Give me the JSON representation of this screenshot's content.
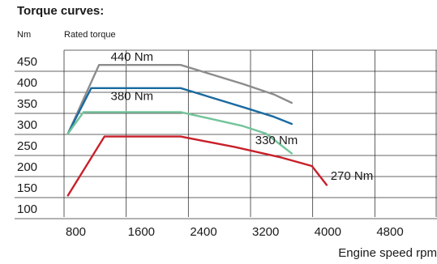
{
  "chart_data": {
    "type": "line",
    "title": "Torque curves:",
    "y_unit": "Nm",
    "ylabel": "Rated torque",
    "xlabel": "Engine speed rpm",
    "xlim": [
      800,
      5600
    ],
    "ylim": [
      100,
      450
    ],
    "x_ticks": [
      800,
      1600,
      2400,
      3200,
      4000,
      4800
    ],
    "y_ticks": [
      450,
      400,
      350,
      300,
      250,
      200,
      150,
      100
    ],
    "grid": true,
    "series": [
      {
        "name": "440 Nm",
        "color": "#8c8c8c",
        "x": [
          850,
          1250,
          2300,
          3100,
          3500,
          3730
        ],
        "y": [
          277,
          440,
          440,
          395,
          370,
          350
        ]
      },
      {
        "name": "380 Nm",
        "color": "#1a6aa0",
        "x": [
          850,
          1150,
          2300,
          3100,
          3500,
          3730
        ],
        "y": [
          277,
          385,
          385,
          340,
          317,
          300
        ]
      },
      {
        "name": "330 Nm",
        "color": "#72c49a",
        "x": [
          850,
          1050,
          2300,
          3100,
          3400,
          3730
        ],
        "y": [
          277,
          328,
          328,
          295,
          277,
          230
        ]
      },
      {
        "name": "270 Nm",
        "color": "#c8202a",
        "x": [
          850,
          1320,
          2300,
          3000,
          3600,
          3990,
          4180
        ],
        "y": [
          130,
          270,
          270,
          245,
          220,
          200,
          155
        ]
      }
    ],
    "annotations": [
      {
        "text": "440 Nm",
        "x": 1400,
        "y": 450,
        "series": 0
      },
      {
        "text": "380 Nm",
        "x": 1400,
        "y": 357,
        "series": 1
      },
      {
        "text": "330 Nm",
        "x": 3260,
        "y": 252,
        "series": 2
      },
      {
        "text": "270 Nm",
        "x": 4230,
        "y": 167,
        "series": 3
      }
    ]
  }
}
